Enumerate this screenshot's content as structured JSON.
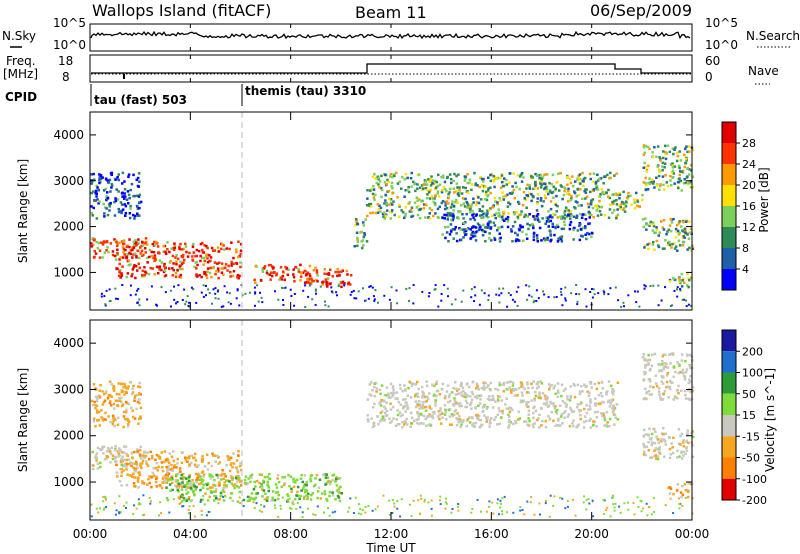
{
  "header": {
    "site": "Wallops Island (fitACF)",
    "beam": "Beam 11",
    "date": "06/Sep/2009"
  },
  "top_panel": {
    "left_label": "N.Sky",
    "left_ticks": [
      "10^5",
      "10^0"
    ],
    "right_label": "N.Search",
    "right_ticks": [
      "10^5",
      "10^0"
    ]
  },
  "freq_panel": {
    "left_label_1": "Freq.",
    "left_label_2": "[MHz]",
    "left_ticks": [
      "18",
      "8"
    ],
    "right_label": "Nave",
    "right_ticks": [
      "60",
      "0"
    ],
    "cpid_label": "CPID",
    "cpid_segments": [
      {
        "label": "tau (fast) 503",
        "start_hour": 0
      },
      {
        "label": "themis (tau) 3310",
        "start_hour": 6
      }
    ]
  },
  "x_axis": {
    "ticks": [
      "00:00",
      "04:00",
      "08:00",
      "12:00",
      "16:00",
      "20:00",
      "00:00"
    ],
    "label": "Time UT"
  },
  "chart_data": [
    {
      "type": "heatmap",
      "name": "power",
      "ylabel": "Slant Range [km]",
      "yticks": [
        "1000",
        "2000",
        "3000",
        "4000"
      ],
      "ylim": [
        180,
        4500
      ],
      "xlim": [
        0,
        24
      ],
      "colorbar": {
        "label": "Power [dB]",
        "ticks": [
          "4",
          "8",
          "12",
          "16",
          "20",
          "24",
          "28"
        ],
        "colors": [
          "#0000ff",
          "#1e5fa8",
          "#2e8b57",
          "#7ccf5a",
          "#ffe000",
          "#ff9900",
          "#ff3300",
          "#e00000"
        ]
      },
      "regions": [
        {
          "t0": 0.0,
          "t1": 2.2,
          "r0": 1300,
          "r1": 1800,
          "level": "high"
        },
        {
          "t0": 0.0,
          "t1": 2.0,
          "r0": 2200,
          "r1": 3200,
          "level": "low"
        },
        {
          "t0": 1.0,
          "t1": 6.0,
          "r0": 900,
          "r1": 1700,
          "level": "high"
        },
        {
          "t0": 6.5,
          "t1": 9.0,
          "r0": 800,
          "r1": 1200,
          "level": "high"
        },
        {
          "t0": 8.5,
          "t1": 10.5,
          "r0": 700,
          "r1": 1100,
          "level": "high"
        },
        {
          "t0": 10.5,
          "t1": 11.0,
          "r0": 1500,
          "r1": 2200,
          "level": "med"
        },
        {
          "t0": 11.0,
          "t1": 21.0,
          "r0": 2200,
          "r1": 3200,
          "level": "med"
        },
        {
          "t0": 14.0,
          "t1": 20.0,
          "r0": 1700,
          "r1": 2300,
          "level": "low"
        },
        {
          "t0": 21.0,
          "t1": 22.0,
          "r0": 2300,
          "r1": 2800,
          "level": "med"
        },
        {
          "t0": 22.0,
          "t1": 24.0,
          "r0": 2800,
          "r1": 3800,
          "level": "med"
        },
        {
          "t0": 22.0,
          "t1": 24.0,
          "r0": 1500,
          "r1": 2200,
          "level": "med"
        },
        {
          "t0": 23.0,
          "t1": 24.0,
          "r0": 700,
          "r1": 1000,
          "level": "med"
        }
      ]
    },
    {
      "type": "heatmap",
      "name": "velocity",
      "ylabel": "Slant Range [km]",
      "yticks": [
        "1000",
        "2000",
        "3000",
        "4000"
      ],
      "ylim": [
        180,
        4500
      ],
      "xlim": [
        0,
        24
      ],
      "colorbar": {
        "label": "Velocity [m s^-1]",
        "ticks": [
          "200",
          "100",
          "50",
          "15",
          "-15",
          "-50",
          "-100",
          "-200"
        ],
        "colors": [
          "#1a1aa0",
          "#1e6fd0",
          "#2e9b3a",
          "#7ddc3a",
          "#c8c8c0",
          "#f5a623",
          "#ff7f00",
          "#e00000"
        ]
      },
      "regions": [
        {
          "t0": 0.0,
          "t1": 2.2,
          "r0": 1300,
          "r1": 1800,
          "vel": "neutral"
        },
        {
          "t0": 0.0,
          "t1": 2.0,
          "r0": 2200,
          "r1": 3200,
          "vel": "neg"
        },
        {
          "t0": 1.0,
          "t1": 6.0,
          "r0": 900,
          "r1": 1700,
          "vel": "neg"
        },
        {
          "t0": 3.0,
          "t1": 10.0,
          "r0": 600,
          "r1": 1200,
          "vel": "pos"
        },
        {
          "t0": 11.0,
          "t1": 21.0,
          "r0": 2200,
          "r1": 3200,
          "vel": "neutral"
        },
        {
          "t0": 22.0,
          "t1": 24.0,
          "r0": 2800,
          "r1": 3800,
          "vel": "neutral"
        },
        {
          "t0": 22.0,
          "t1": 24.0,
          "r0": 1500,
          "r1": 2200,
          "vel": "neutral"
        },
        {
          "t0": 23.0,
          "t1": 24.0,
          "r0": 700,
          "r1": 1000,
          "vel": "neg"
        }
      ]
    }
  ]
}
